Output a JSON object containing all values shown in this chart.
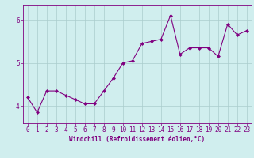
{
  "x": [
    0,
    1,
    2,
    3,
    4,
    5,
    6,
    7,
    8,
    9,
    10,
    11,
    12,
    13,
    14,
    15,
    16,
    17,
    18,
    19,
    20,
    21,
    22,
    23
  ],
  "y": [
    4.2,
    3.85,
    4.35,
    4.35,
    4.25,
    4.15,
    4.05,
    4.05,
    4.35,
    4.65,
    5.0,
    5.05,
    5.45,
    5.5,
    5.55,
    6.1,
    5.2,
    5.35,
    5.35,
    5.35,
    5.15,
    5.9,
    5.65,
    5.75
  ],
  "line_color": "#800080",
  "marker": "D",
  "marker_size": 2.0,
  "bg_color": "#d0eeee",
  "grid_color": "#aacccc",
  "xlabel": "Windchill (Refroidissement éolien,°C)",
  "xlim": [
    -0.5,
    23.5
  ],
  "ylim": [
    3.6,
    6.35
  ],
  "yticks": [
    4,
    5,
    6
  ],
  "xticks": [
    0,
    1,
    2,
    3,
    4,
    5,
    6,
    7,
    8,
    9,
    10,
    11,
    12,
    13,
    14,
    15,
    16,
    17,
    18,
    19,
    20,
    21,
    22,
    23
  ],
  "label_fontsize": 5.5,
  "tick_fontsize": 5.5
}
